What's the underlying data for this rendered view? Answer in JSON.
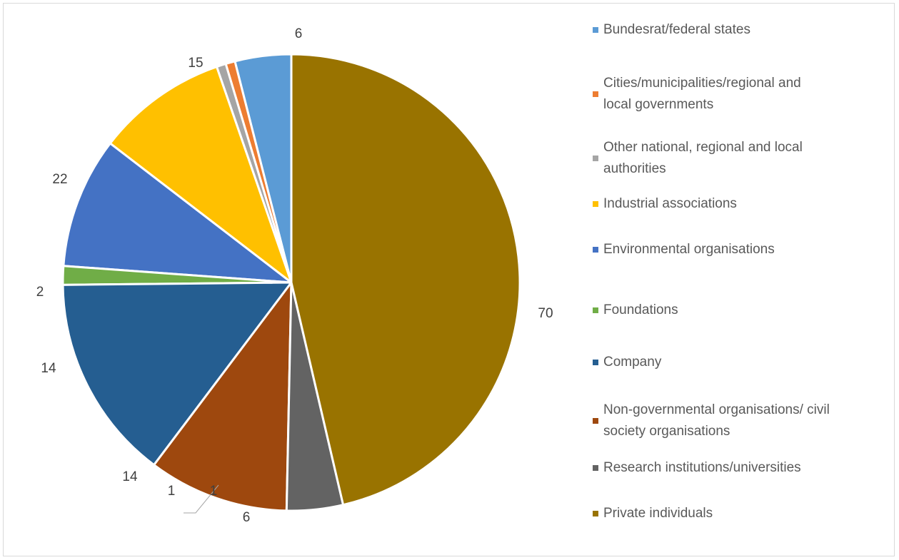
{
  "chart_data": {
    "type": "pie",
    "title": "",
    "categories": [
      "Bundesrat/federal states",
      "Cities/municipalities/regional and local governments",
      "Other national, regional and local authorities",
      "Industrial associations",
      "Environmental organisations",
      "Foundations",
      "Company",
      "Non-governmental organisations/ civil society organisations",
      "Research institutions/universities",
      "Private individuals"
    ],
    "values": [
      6,
      1,
      1,
      14,
      14,
      2,
      22,
      15,
      6,
      70
    ],
    "colors": [
      "#5b9bd5",
      "#ed7d31",
      "#a5a5a5",
      "#ffc000",
      "#4472c4",
      "#70ad47",
      "#255e91",
      "#9e480e",
      "#636363",
      "#997300"
    ],
    "legend_position": "right",
    "start_direction": "counterclockwise from top",
    "legend": [
      {
        "lines": [
          "Bundesrat/federal states"
        ]
      },
      {
        "lines": [
          "Cities/municipalities/regional and",
          "local governments"
        ]
      },
      {
        "lines": [
          "Other national, regional and local",
          "authorities"
        ]
      },
      {
        "lines": [
          "Industrial associations"
        ]
      },
      {
        "lines": [
          "Environmental organisations"
        ]
      },
      {
        "lines": [
          "Foundations"
        ]
      },
      {
        "lines": [
          "Company"
        ]
      },
      {
        "lines": [
          "Non-governmental organisations/ civil",
          "society organisations"
        ]
      },
      {
        "lines": [
          "Research institutions/universities"
        ]
      },
      {
        "lines": [
          "Private individuals"
        ]
      }
    ],
    "data_labels": [
      "6",
      "1",
      "1",
      "14",
      "14",
      "2",
      "22",
      "15",
      "6",
      "70"
    ]
  }
}
